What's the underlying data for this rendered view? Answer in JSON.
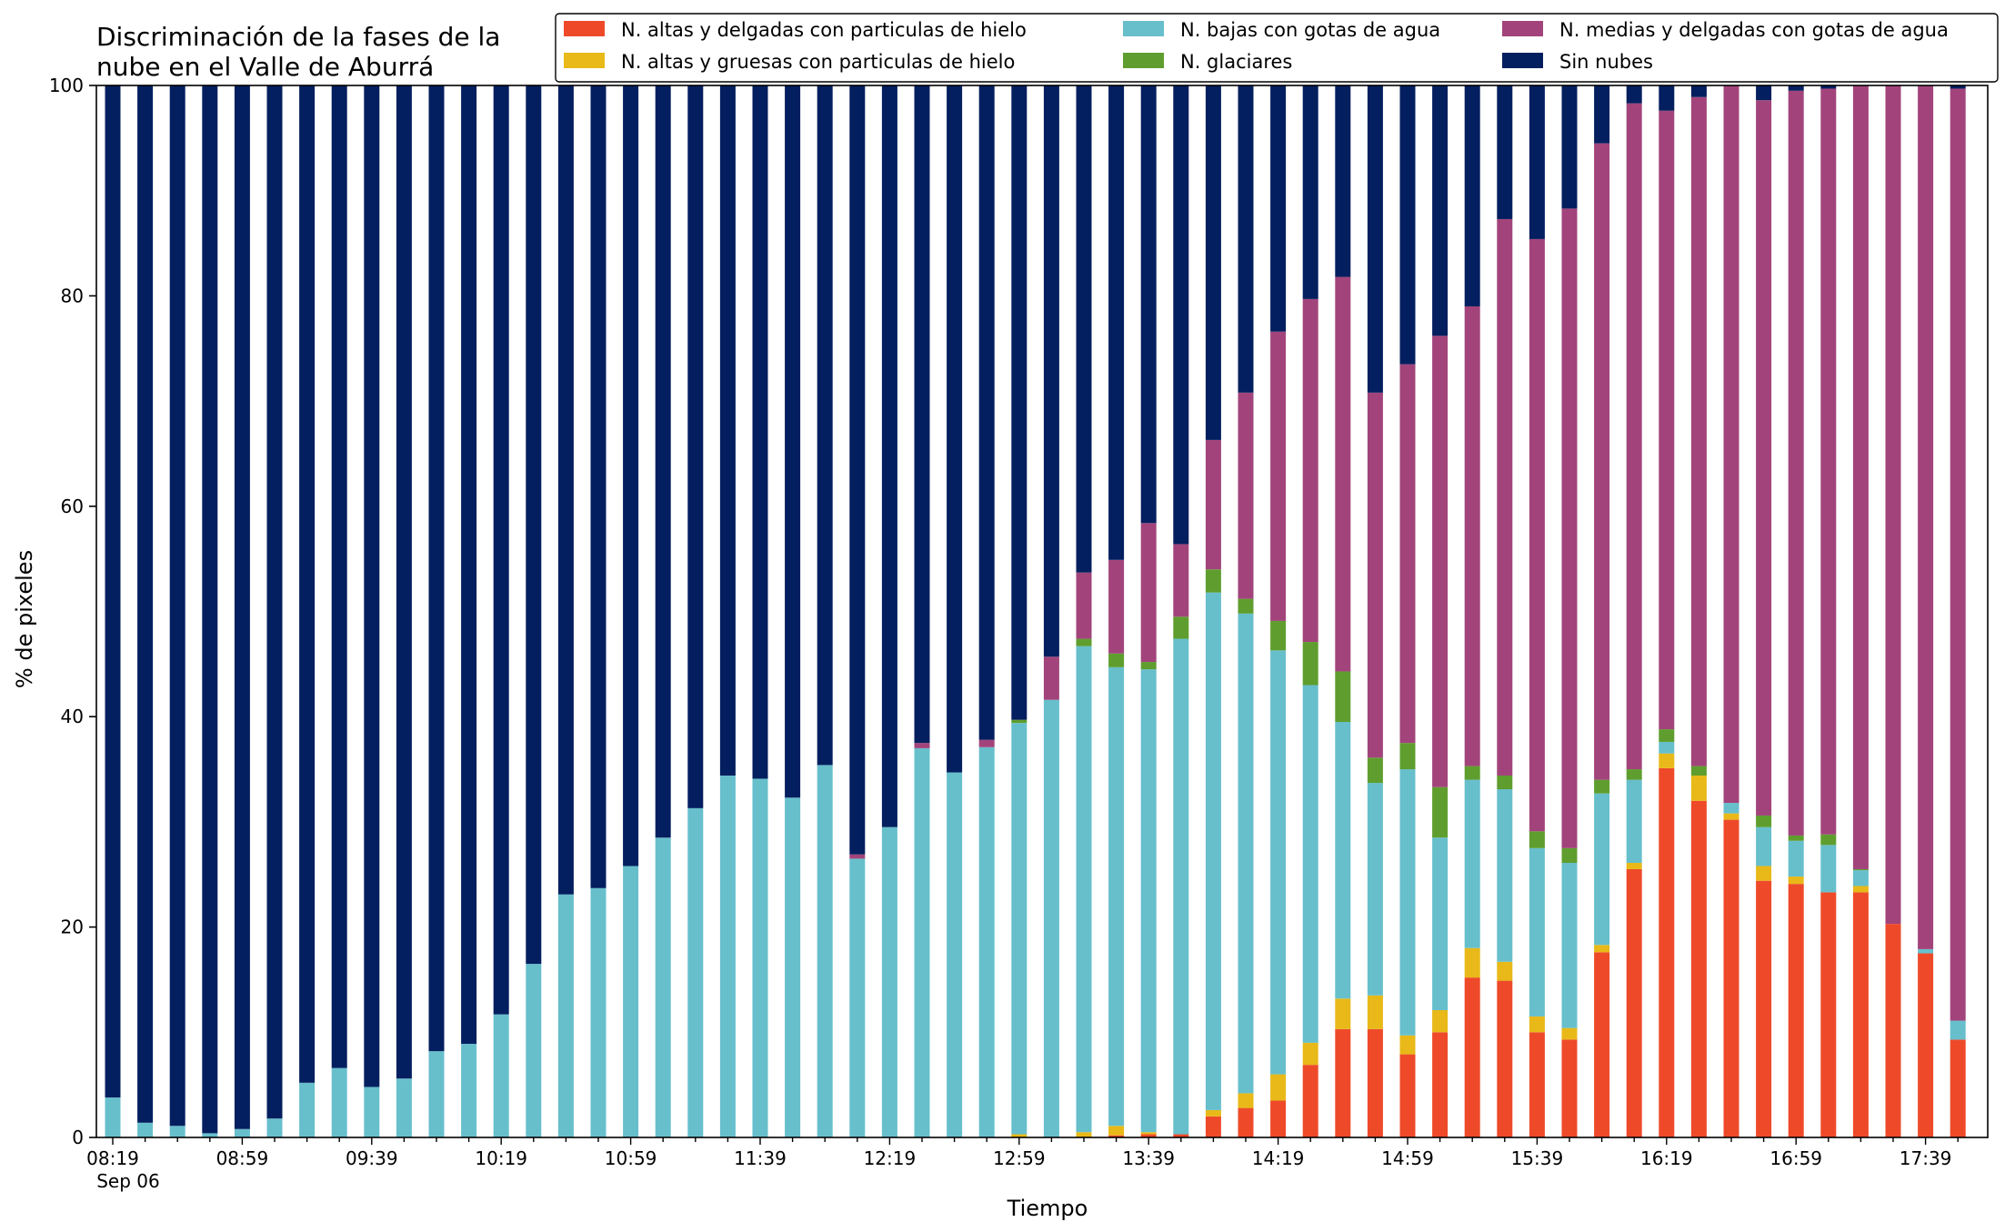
{
  "chart_data": {
    "type": "bar",
    "stacked": true,
    "title": "Discriminación de la fases de la\nnube en el Valle de Aburrá",
    "xlabel": "Tiempo",
    "ylabel": "% de pixeles",
    "ylim": [
      0,
      100
    ],
    "yticks": [
      "0",
      "20",
      "40",
      "60",
      "80",
      "100"
    ],
    "grid": false,
    "legend_position": "top-right",
    "categories": [
      "08:19",
      "08:29",
      "08:39",
      "08:49",
      "08:59",
      "09:09",
      "09:19",
      "09:29",
      "09:39",
      "09:49",
      "09:59",
      "10:09",
      "10:19",
      "10:29",
      "10:39",
      "10:49",
      "10:59",
      "11:09",
      "11:19",
      "11:29",
      "11:39",
      "11:49",
      "11:59",
      "12:09",
      "12:19",
      "12:29",
      "12:39",
      "12:49",
      "12:59",
      "13:09",
      "13:19",
      "13:29",
      "13:39",
      "13:49",
      "13:59",
      "14:09",
      "14:19",
      "14:29",
      "14:39",
      "14:49",
      "14:59",
      "15:09",
      "15:19",
      "15:29",
      "15:39",
      "15:49",
      "15:59",
      "16:09",
      "16:19",
      "16:29",
      "16:39",
      "16:49",
      "16:59",
      "17:09",
      "17:19",
      "17:29",
      "17:39",
      "17:49"
    ],
    "xtick_labels": [
      {
        "index": 0,
        "label": "08:19",
        "sublabel": "Sep 06"
      },
      {
        "index": 4,
        "label": "08:59"
      },
      {
        "index": 8,
        "label": "09:39"
      },
      {
        "index": 12,
        "label": "10:19"
      },
      {
        "index": 16,
        "label": "10:59"
      },
      {
        "index": 20,
        "label": "11:39"
      },
      {
        "index": 24,
        "label": "12:19"
      },
      {
        "index": 28,
        "label": "12:59"
      },
      {
        "index": 32,
        "label": "13:39"
      },
      {
        "index": 36,
        "label": "14:19"
      },
      {
        "index": 40,
        "label": "14:59"
      },
      {
        "index": 44,
        "label": "15:39"
      },
      {
        "index": 48,
        "label": "16:19"
      },
      {
        "index": 52,
        "label": "16:59"
      },
      {
        "index": 56,
        "label": "17:39"
      }
    ],
    "series": [
      {
        "name": "N. altas y delgadas con particulas de hielo",
        "color": "#ee4a2a",
        "values": [
          0,
          0,
          0,
          0,
          0,
          0,
          0,
          0,
          0,
          0,
          0,
          0,
          0,
          0,
          0,
          0,
          0,
          0,
          0,
          0,
          0,
          0,
          0,
          0,
          0,
          0,
          0,
          0,
          0,
          0,
          0,
          0.2,
          0.3,
          0.3,
          2,
          2.8,
          3.5,
          6.9,
          10.3,
          10.3,
          7.9,
          10.0,
          15.2,
          14.9,
          10.0,
          9.3,
          17.6,
          25.5,
          35.1,
          32.0,
          30.2,
          24.4,
          24.1,
          23.3,
          23.3,
          20.3,
          17.5,
          9.3
        ]
      },
      {
        "name": "N. altas y gruesas con particulas de hielo",
        "color": "#e8b918",
        "values": [
          0,
          0,
          0,
          0,
          0,
          0,
          0,
          0,
          0,
          0,
          0,
          0,
          0,
          0,
          0,
          0,
          0,
          0,
          0,
          0,
          0,
          0,
          0,
          0,
          0,
          0,
          0,
          0,
          0.3,
          0,
          0.5,
          0.9,
          0.2,
          0,
          0.6,
          1.4,
          2.5,
          2.1,
          2.9,
          3.2,
          1.8,
          2.1,
          2.8,
          1.8,
          1.5,
          1.1,
          0.7,
          0.6,
          1.4,
          2.4,
          0.6,
          1.4,
          0.7,
          0,
          0.6,
          0,
          0,
          0
        ]
      },
      {
        "name": "N. bajas con gotas de agua",
        "color": "#67bfcc",
        "values": [
          3.8,
          1.4,
          1.1,
          0.4,
          0.8,
          1.8,
          5.2,
          6.6,
          4.8,
          5.6,
          8.2,
          8.9,
          11.7,
          16.5,
          23.1,
          23.7,
          25.8,
          28.5,
          31.3,
          34.4,
          34.1,
          32.3,
          35.4,
          26.5,
          29.5,
          37.0,
          34.7,
          37.1,
          39.1,
          41.6,
          46.2,
          43.6,
          44.0,
          47.1,
          49.2,
          45.6,
          40.3,
          34.0,
          26.3,
          20.2,
          25.3,
          16.4,
          16.0,
          16.4,
          16.0,
          15.7,
          14.4,
          7.9,
          1.1,
          0,
          1.0,
          3.7,
          3.4,
          4.5,
          1.5,
          0,
          0.4,
          1.8
        ]
      },
      {
        "name": "N. glaciares",
        "color": "#5f9e2e",
        "values": [
          0,
          0,
          0,
          0,
          0,
          0,
          0,
          0,
          0,
          0,
          0,
          0,
          0,
          0,
          0,
          0,
          0,
          0,
          0,
          0,
          0,
          0,
          0,
          0,
          0,
          0,
          0,
          0,
          0.3,
          0,
          0.7,
          1.3,
          0.7,
          2.1,
          2.2,
          1.4,
          2.8,
          4.1,
          4.8,
          2.4,
          2.5,
          4.8,
          1.3,
          1.3,
          1.6,
          1.4,
          1.3,
          1.0,
          1.2,
          0.9,
          0,
          1.1,
          0.5,
          1.0,
          0.1,
          0,
          0,
          0
        ]
      },
      {
        "name": "N. medias y delgadas con gotas de agua",
        "color": "#a2447b",
        "values": [
          0,
          0,
          0,
          0,
          0,
          0,
          0,
          0,
          0,
          0,
          0,
          0,
          0,
          0,
          0,
          0,
          0,
          0,
          0,
          0,
          0,
          0,
          0,
          0.4,
          0,
          0.5,
          0,
          0.7,
          0,
          4.1,
          6.3,
          8.9,
          13.2,
          6.9,
          12.3,
          19.6,
          27.5,
          32.6,
          37.5,
          34.7,
          36.0,
          42.9,
          43.7,
          52.9,
          56.3,
          60.8,
          60.5,
          63.3,
          58.8,
          63.6,
          68.2,
          68.0,
          70.8,
          70.9,
          74.5,
          79.7,
          82.1,
          88.6
        ]
      },
      {
        "name": "Sin nubes",
        "color": "#041f5f",
        "values": [
          96.2,
          98.6,
          98.9,
          99.6,
          99.2,
          98.2,
          94.8,
          93.4,
          95.2,
          94.4,
          91.8,
          91.1,
          88.3,
          83.5,
          76.9,
          76.3,
          74.2,
          71.5,
          68.7,
          65.6,
          65.9,
          67.7,
          64.6,
          73.1,
          70.5,
          62.5,
          65.3,
          62.2,
          60.3,
          54.3,
          46.3,
          45.1,
          41.6,
          43.6,
          33.7,
          29.2,
          23.4,
          20.3,
          18.2,
          29.2,
          26.5,
          23.8,
          21.0,
          12.7,
          14.6,
          11.7,
          5.5,
          1.7,
          2.4,
          1.1,
          0,
          1.4,
          0.5,
          0.3,
          0,
          0,
          0,
          0.3
        ]
      }
    ]
  }
}
